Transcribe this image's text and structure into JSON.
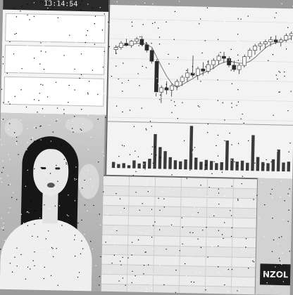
{
  "left_panel": {
    "time": "13:14:54",
    "messages": [
      {
        "text": ""
      },
      {
        "text": ""
      },
      {
        "text": ""
      }
    ]
  },
  "chart": {
    "candles": [
      {
        "o": 62,
        "h": 66,
        "l": 58,
        "c": 64
      },
      {
        "o": 64,
        "h": 70,
        "l": 62,
        "c": 68
      },
      {
        "o": 68,
        "h": 72,
        "l": 65,
        "c": 66
      },
      {
        "o": 66,
        "h": 71,
        "l": 64,
        "c": 70
      },
      {
        "o": 70,
        "h": 74,
        "l": 68,
        "c": 72
      },
      {
        "o": 72,
        "h": 75,
        "l": 66,
        "c": 67
      },
      {
        "o": 67,
        "h": 69,
        "l": 60,
        "c": 62
      },
      {
        "o": 62,
        "h": 64,
        "l": 50,
        "c": 52
      },
      {
        "o": 52,
        "h": 54,
        "l": 20,
        "c": 24
      },
      {
        "o": 24,
        "h": 30,
        "l": 14,
        "c": 28
      },
      {
        "o": 28,
        "h": 34,
        "l": 22,
        "c": 26
      },
      {
        "o": 26,
        "h": 32,
        "l": 20,
        "c": 30
      },
      {
        "o": 30,
        "h": 36,
        "l": 26,
        "c": 34
      },
      {
        "o": 34,
        "h": 40,
        "l": 30,
        "c": 38
      },
      {
        "o": 38,
        "h": 46,
        "l": 34,
        "c": 42
      },
      {
        "o": 42,
        "h": 58,
        "l": 38,
        "c": 40
      },
      {
        "o": 40,
        "h": 48,
        "l": 36,
        "c": 46
      },
      {
        "o": 46,
        "h": 52,
        "l": 40,
        "c": 44
      },
      {
        "o": 44,
        "h": 54,
        "l": 42,
        "c": 50
      },
      {
        "o": 50,
        "h": 56,
        "l": 46,
        "c": 54
      },
      {
        "o": 54,
        "h": 60,
        "l": 50,
        "c": 58
      },
      {
        "o": 58,
        "h": 62,
        "l": 52,
        "c": 56
      },
      {
        "o": 56,
        "h": 58,
        "l": 48,
        "c": 50
      },
      {
        "o": 50,
        "h": 54,
        "l": 44,
        "c": 46
      },
      {
        "o": 46,
        "h": 52,
        "l": 42,
        "c": 50
      },
      {
        "o": 50,
        "h": 60,
        "l": 48,
        "c": 58
      },
      {
        "o": 58,
        "h": 66,
        "l": 56,
        "c": 64
      },
      {
        "o": 64,
        "h": 70,
        "l": 60,
        "c": 68
      },
      {
        "o": 68,
        "h": 72,
        "l": 64,
        "c": 70
      },
      {
        "o": 70,
        "h": 74,
        "l": 66,
        "c": 72
      },
      {
        "o": 72,
        "h": 76,
        "l": 68,
        "c": 74
      },
      {
        "o": 74,
        "h": 78,
        "l": 70,
        "c": 72
      },
      {
        "o": 72,
        "h": 76,
        "l": 68,
        "c": 74
      },
      {
        "o": 74,
        "h": 80,
        "l": 72,
        "c": 78
      },
      {
        "o": 78,
        "h": 82,
        "l": 74,
        "c": 80
      }
    ],
    "volumes": [
      6,
      4,
      5,
      3,
      8,
      5,
      7,
      10,
      35,
      22,
      18,
      12,
      9,
      8,
      10,
      44,
      12,
      8,
      10,
      9,
      7,
      8,
      30,
      12,
      9,
      10,
      8,
      36,
      14,
      9,
      8,
      12,
      22,
      9,
      10
    ]
  },
  "brand": {
    "text": "NZOL"
  }
}
